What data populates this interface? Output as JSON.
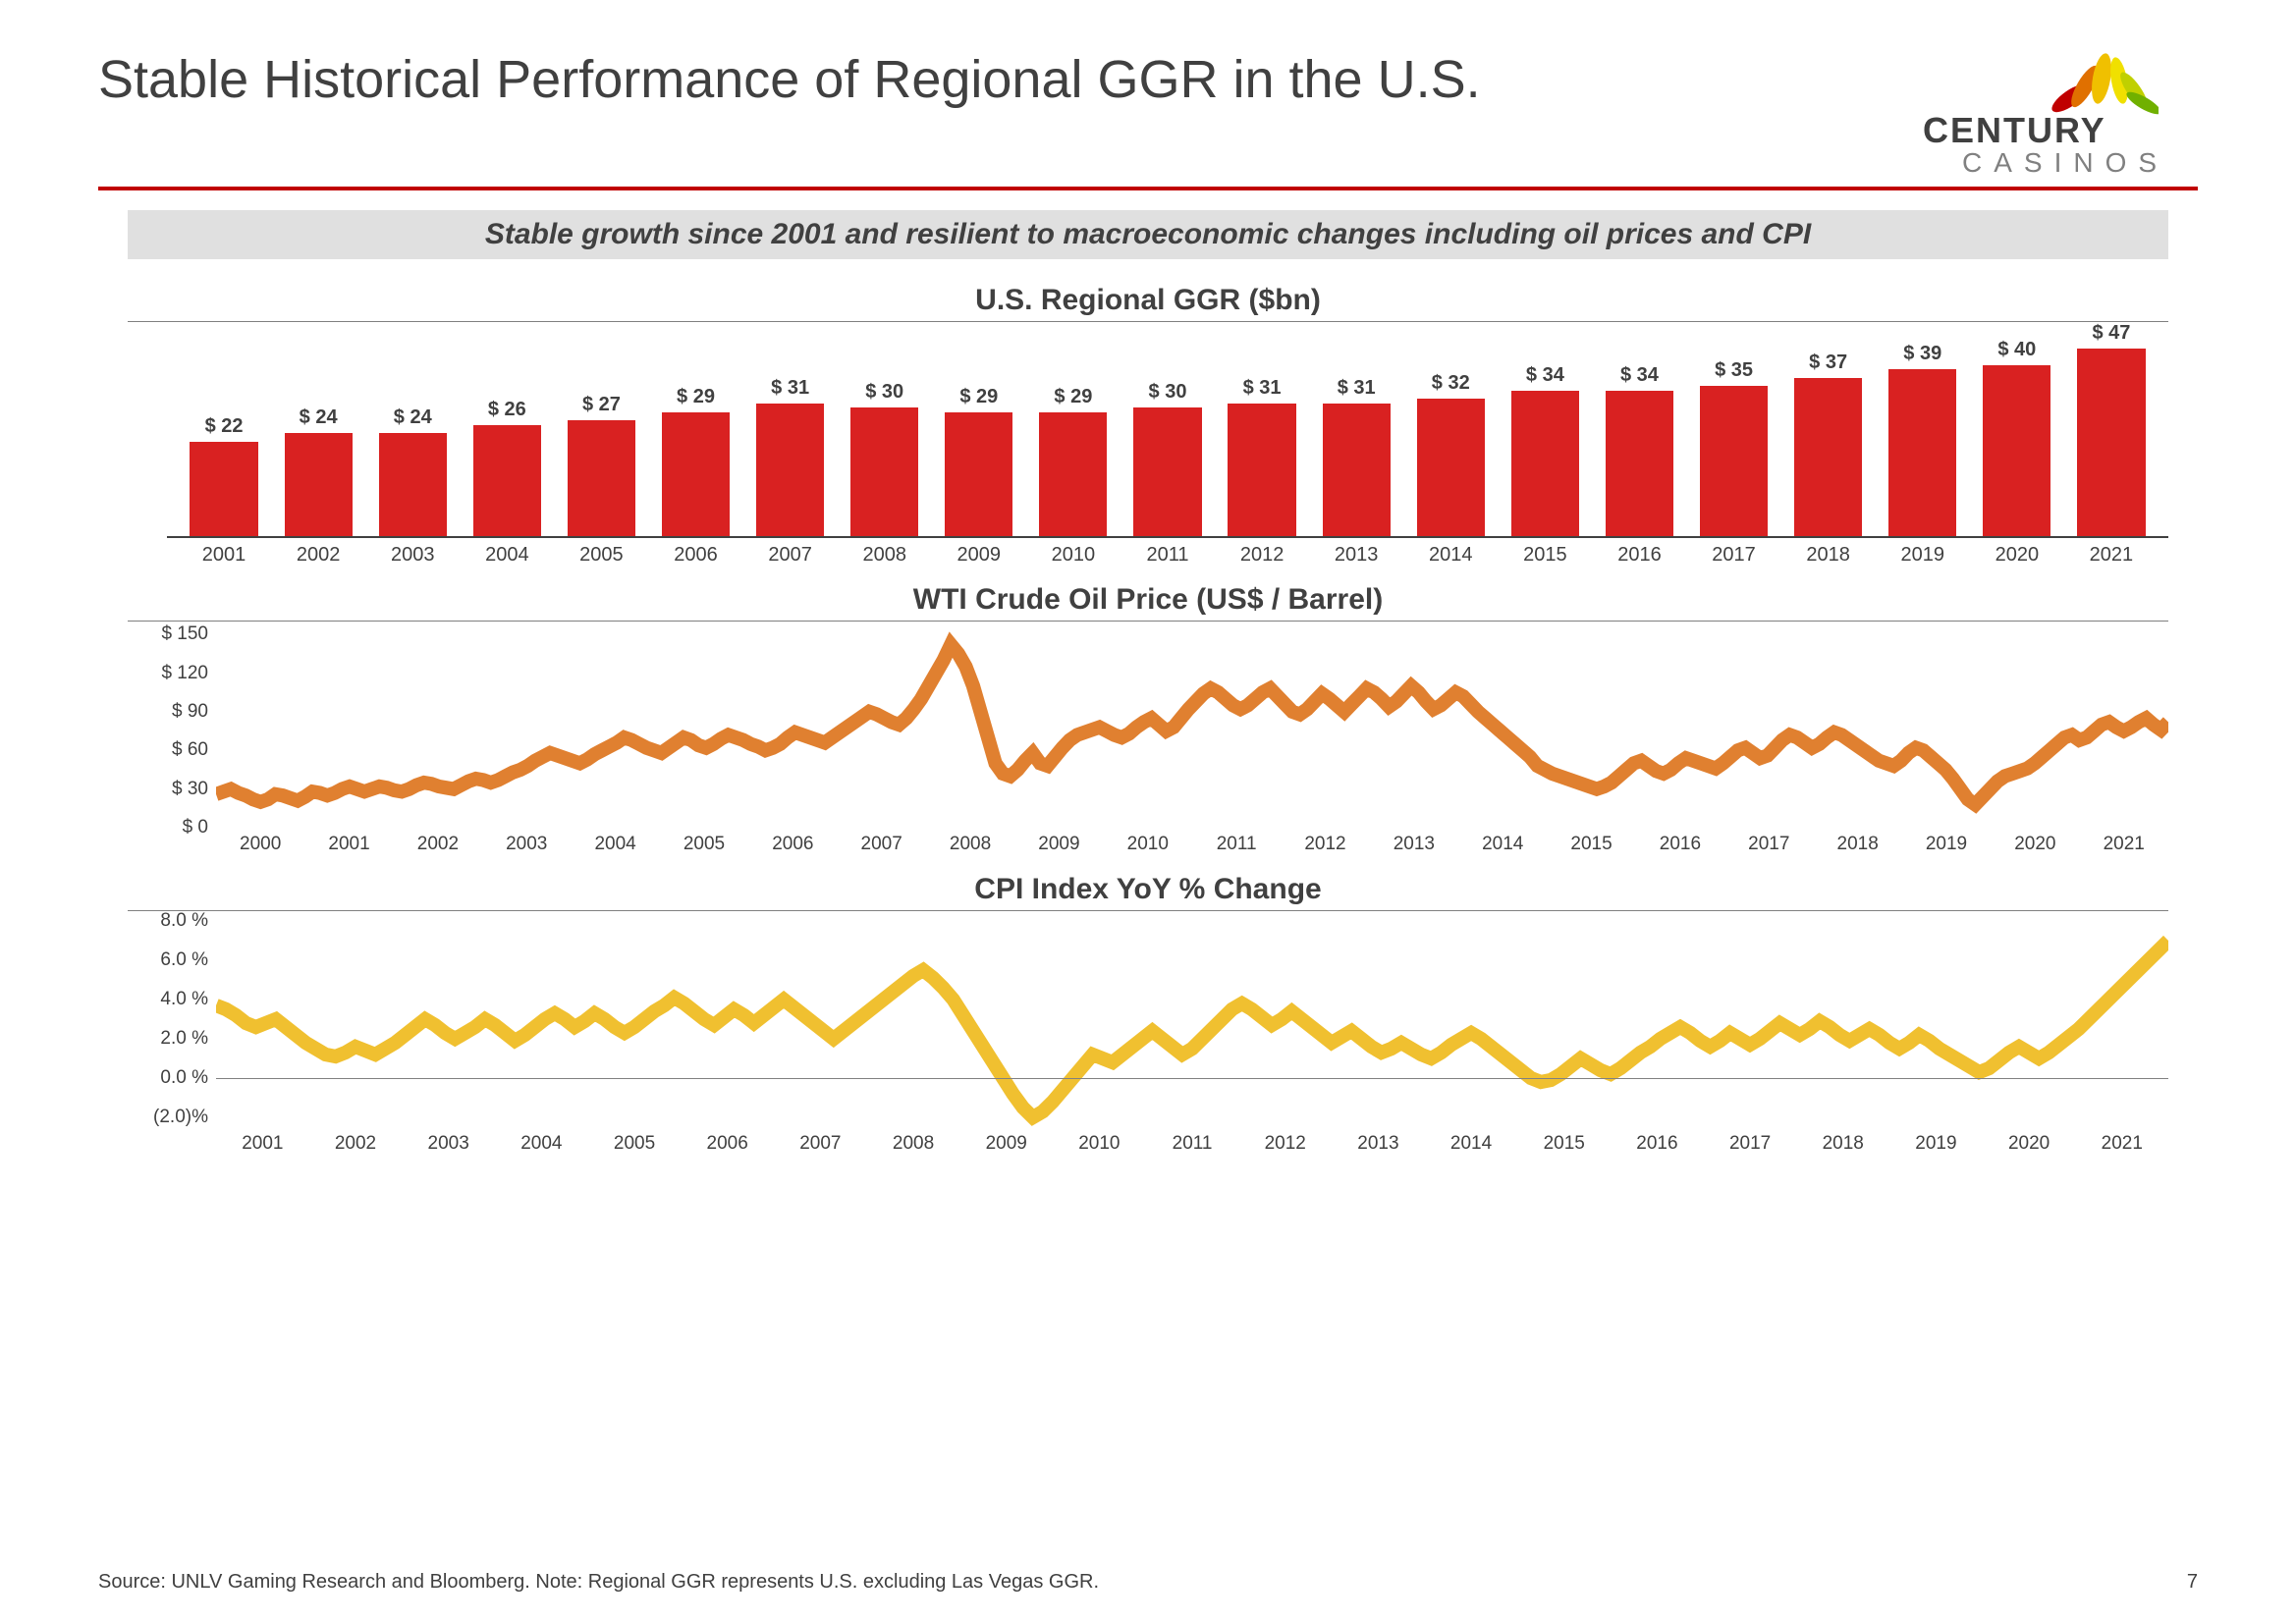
{
  "page": {
    "title": "Stable Historical Performance of Regional GGR in the U.S.",
    "subtitle": "Stable growth since 2001 and resilient to macroeconomic changes including oil prices and CPI",
    "source": "Source: UNLV Gaming Research and Bloomberg. Note: Regional GGR represents U.S. excluding Las Vegas GGR.",
    "page_number": "7"
  },
  "logo": {
    "line1": "CENTURY",
    "line2": "CASINOS",
    "leaf_colors": [
      "#c00000",
      "#e07000",
      "#f0c000",
      "#f0e000",
      "#c0d000",
      "#70b000"
    ]
  },
  "colors": {
    "accent": "#c00000",
    "bar": "#d92121",
    "oil_line": "#e08030",
    "cpi_line": "#f0c030",
    "text": "#404040",
    "subtitle_bg": "#e0e0e0",
    "axis": "#404040",
    "grid": "#808080",
    "bg": "#ffffff"
  },
  "bar_chart": {
    "title": "U.S. Regional GGR ($bn)",
    "type": "bar",
    "categories": [
      "2001",
      "2002",
      "2003",
      "2004",
      "2005",
      "2006",
      "2007",
      "2008",
      "2009",
      "2010",
      "2011",
      "2012",
      "2013",
      "2014",
      "2015",
      "2016",
      "2017",
      "2018",
      "2019",
      "2020",
      "2021"
    ],
    "values": [
      22,
      24,
      24,
      26,
      27,
      29,
      31,
      30,
      29,
      29,
      30,
      31,
      31,
      32,
      34,
      34,
      35,
      37,
      39,
      40,
      47
    ],
    "value_prefix": "$ ",
    "y_max": 50,
    "bar_color": "#d92121",
    "label_fontsize": 20,
    "label_fontweight": 700,
    "title_fontsize": 30,
    "bar_width_pct": 72
  },
  "oil_chart": {
    "title": "WTI Crude Oil Price (US$ / Barrel)",
    "type": "line",
    "x_labels": [
      "2000",
      "2001",
      "2002",
      "2003",
      "2004",
      "2005",
      "2006",
      "2007",
      "2008",
      "2009",
      "2010",
      "2011",
      "2012",
      "2013",
      "2014",
      "2015",
      "2016",
      "2017",
      "2018",
      "2019",
      "2020",
      "2021"
    ],
    "y_ticks": [
      0,
      30,
      60,
      90,
      120,
      150
    ],
    "y_tick_prefix": "$ ",
    "ylim": [
      0,
      160
    ],
    "line_color": "#e08030",
    "line_width": 3,
    "title_fontsize": 30,
    "label_fontsize": 19,
    "series": [
      26,
      28,
      30,
      27,
      25,
      22,
      20,
      22,
      26,
      25,
      23,
      21,
      24,
      28,
      27,
      25,
      27,
      30,
      32,
      30,
      28,
      30,
      32,
      31,
      29,
      28,
      30,
      33,
      35,
      34,
      32,
      31,
      30,
      33,
      36,
      38,
      37,
      35,
      37,
      40,
      43,
      45,
      48,
      52,
      55,
      58,
      56,
      54,
      52,
      50,
      53,
      57,
      60,
      63,
      66,
      70,
      68,
      65,
      62,
      60,
      58,
      62,
      66,
      70,
      68,
      64,
      62,
      65,
      69,
      72,
      70,
      68,
      65,
      63,
      60,
      62,
      65,
      70,
      74,
      72,
      70,
      68,
      66,
      70,
      74,
      78,
      82,
      86,
      90,
      88,
      85,
      82,
      80,
      85,
      92,
      100,
      110,
      120,
      130,
      142,
      135,
      125,
      110,
      90,
      70,
      50,
      42,
      40,
      45,
      52,
      58,
      50,
      48,
      55,
      62,
      68,
      72,
      74,
      76,
      78,
      75,
      72,
      70,
      73,
      78,
      82,
      85,
      80,
      75,
      78,
      85,
      92,
      98,
      104,
      108,
      105,
      100,
      95,
      92,
      95,
      100,
      105,
      108,
      102,
      96,
      90,
      88,
      92,
      98,
      104,
      100,
      95,
      90,
      96,
      102,
      108,
      105,
      100,
      94,
      98,
      104,
      110,
      105,
      98,
      92,
      95,
      100,
      105,
      102,
      96,
      90,
      85,
      80,
      75,
      70,
      65,
      60,
      55,
      48,
      45,
      42,
      40,
      38,
      36,
      34,
      32,
      30,
      32,
      35,
      40,
      45,
      50,
      52,
      48,
      44,
      42,
      45,
      50,
      54,
      52,
      50,
      48,
      46,
      50,
      55,
      60,
      62,
      58,
      54,
      56,
      62,
      68,
      72,
      70,
      66,
      62,
      65,
      70,
      74,
      72,
      68,
      64,
      60,
      56,
      52,
      50,
      48,
      52,
      58,
      62,
      60,
      55,
      50,
      45,
      38,
      30,
      22,
      18,
      24,
      30,
      36,
      40,
      42,
      44,
      46,
      50,
      55,
      60,
      65,
      70,
      72,
      68,
      70,
      75,
      80,
      82,
      78,
      75,
      78,
      82,
      85,
      80,
      76,
      82
    ]
  },
  "cpi_chart": {
    "title": "CPI Index YoY % Change",
    "type": "line",
    "x_labels": [
      "2001",
      "2002",
      "2003",
      "2004",
      "2005",
      "2006",
      "2007",
      "2008",
      "2009",
      "2010",
      "2011",
      "2012",
      "2013",
      "2014",
      "2015",
      "2016",
      "2017",
      "2018",
      "2019",
      "2020",
      "2021"
    ],
    "y_ticks": [
      -2,
      0,
      2,
      4,
      6,
      8
    ],
    "y_tick_format_neg_paren": true,
    "y_tick_suffix": " %",
    "ylim": [
      -2.5,
      8.5
    ],
    "zero_line": true,
    "line_color": "#f0c030",
    "line_width": 3,
    "title_fontsize": 30,
    "label_fontsize": 19,
    "series": [
      3.7,
      3.5,
      3.2,
      2.8,
      2.6,
      2.8,
      3.0,
      2.6,
      2.2,
      1.8,
      1.5,
      1.2,
      1.1,
      1.3,
      1.6,
      1.4,
      1.2,
      1.5,
      1.8,
      2.2,
      2.6,
      3.0,
      2.7,
      2.3,
      2.0,
      2.3,
      2.6,
      3.0,
      2.7,
      2.3,
      1.9,
      2.2,
      2.6,
      3.0,
      3.3,
      3.0,
      2.6,
      2.9,
      3.3,
      3.0,
      2.6,
      2.3,
      2.6,
      3.0,
      3.4,
      3.7,
      4.1,
      3.8,
      3.4,
      3.0,
      2.7,
      3.1,
      3.5,
      3.2,
      2.8,
      3.2,
      3.6,
      4.0,
      3.6,
      3.2,
      2.8,
      2.4,
      2.0,
      2.4,
      2.8,
      3.2,
      3.6,
      4.0,
      4.4,
      4.8,
      5.2,
      5.5,
      5.1,
      4.6,
      4.0,
      3.2,
      2.4,
      1.6,
      0.8,
      0.0,
      -0.8,
      -1.5,
      -2.0,
      -1.7,
      -1.2,
      -0.6,
      0.0,
      0.6,
      1.2,
      1.0,
      0.8,
      1.2,
      1.6,
      2.0,
      2.4,
      2.0,
      1.6,
      1.2,
      1.5,
      2.0,
      2.5,
      3.0,
      3.5,
      3.8,
      3.5,
      3.1,
      2.7,
      3.0,
      3.4,
      3.0,
      2.6,
      2.2,
      1.8,
      2.1,
      2.4,
      2.0,
      1.6,
      1.3,
      1.5,
      1.8,
      1.5,
      1.2,
      1.0,
      1.3,
      1.7,
      2.0,
      2.3,
      2.0,
      1.6,
      1.2,
      0.8,
      0.4,
      0.0,
      -0.2,
      -0.1,
      0.2,
      0.6,
      1.0,
      0.7,
      0.4,
      0.2,
      0.5,
      0.9,
      1.3,
      1.6,
      2.0,
      2.3,
      2.6,
      2.3,
      1.9,
      1.6,
      1.9,
      2.3,
      2.0,
      1.7,
      2.0,
      2.4,
      2.8,
      2.5,
      2.2,
      2.5,
      2.9,
      2.6,
      2.2,
      1.9,
      2.2,
      2.5,
      2.2,
      1.8,
      1.5,
      1.8,
      2.2,
      1.9,
      1.5,
      1.2,
      0.9,
      0.6,
      0.3,
      0.5,
      0.9,
      1.3,
      1.6,
      1.3,
      1.0,
      1.3,
      1.7,
      2.1,
      2.5,
      3.0,
      3.5,
      4.0,
      4.5,
      5.0,
      5.5,
      6.0,
      6.5,
      7.0
    ]
  }
}
